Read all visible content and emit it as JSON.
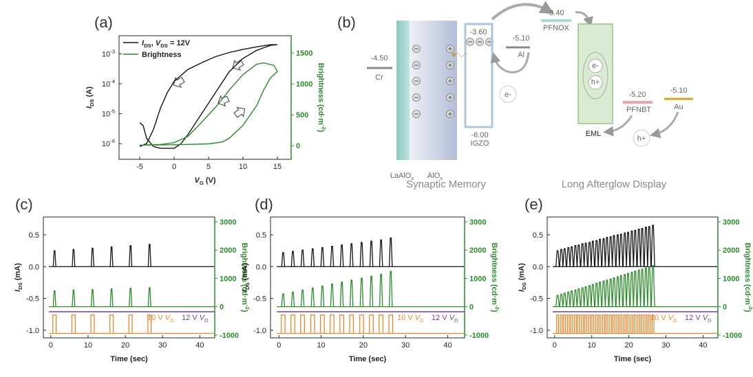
{
  "chart_data": [
    {
      "type": "line",
      "label": "(a)",
      "xlabel": "VG (V)",
      "ylabel": "IDS (A)",
      "y2label": "Brightness (cd·m-2)",
      "xlim": [
        -8,
        17
      ],
      "xticks": [
        -5,
        0,
        5,
        10,
        15
      ],
      "yscale": "log",
      "ylim": [
        3e-07,
        0.004
      ],
      "yticks": [
        {
          "value": 1e-06,
          "label": "10-6"
        },
        {
          "value": 1e-05,
          "label": "10-5"
        },
        {
          "value": 0.0001,
          "label": "10-4"
        },
        {
          "value": 0.001,
          "label": "10-3"
        }
      ],
      "y2lim": [
        -220,
        1780
      ],
      "y2ticks": [
        0,
        500,
        1000,
        1500
      ],
      "y2color": "#2a8a2a",
      "legend": "upper left",
      "series": [
        {
          "name": "IDS, VDS = 12V",
          "color": "#111111",
          "x": [
            -5,
            -4.5,
            -4,
            -3,
            -2,
            0,
            1,
            2,
            4,
            6,
            8,
            10,
            12,
            14,
            15,
            14,
            12,
            10,
            8,
            6,
            4,
            2,
            0,
            -1,
            -2,
            -3,
            -4,
            -5
          ],
          "values": [
            5e-06,
            4e-06,
            1.5e-06,
            8e-07,
            7e-07,
            7e-07,
            1e-06,
            2e-06,
            1e-05,
            5e-05,
            0.00025,
            0.0007,
            0.0013,
            0.0019,
            0.002,
            0.002,
            0.0017,
            0.0014,
            0.0011,
            0.0008,
            0.0005,
            0.0003,
            0.00012,
            5e-05,
            1.5e-05,
            3e-06,
            1e-06,
            8e-07
          ]
        },
        {
          "name": "Brightness",
          "color": "#2a8a2a",
          "axis": "y2",
          "x": [
            -5,
            0,
            5,
            7,
            8,
            10,
            12,
            13,
            14,
            15,
            14.5,
            13,
            12,
            10,
            8,
            6,
            4,
            2,
            0,
            -2,
            -5
          ],
          "values": [
            10,
            15,
            30,
            60,
            120,
            330,
            650,
            900,
            1100,
            1200,
            1300,
            1340,
            1320,
            1150,
            900,
            620,
            380,
            150,
            50,
            20,
            10
          ]
        }
      ]
    },
    {
      "type": "pulse",
      "label": "(c)",
      "xlabel": "Time (sec)",
      "ylabel": "IDS (mA)",
      "y2label": "Brightness (cd·m-2)",
      "xlim": [
        -2,
        44
      ],
      "xticks": [
        0,
        10,
        20,
        30,
        40
      ],
      "ylim": [
        -1.12,
        0.78
      ],
      "yticks": [
        {
          "value": -1,
          "label": "-1.0"
        },
        -0.5,
        {
          "value": 0,
          "label": "0.0"
        },
        0.5
      ],
      "y2lim": [
        -1100,
        3170
      ],
      "y2ticks": [
        -1000,
        0,
        1000,
        2000,
        3000
      ],
      "y2color": "#2a8a2a",
      "series": [
        {
          "shape": "spike",
          "color": "#111111",
          "baseline": 0,
          "width": 0.7,
          "x": [
            1,
            6.1,
            11.2,
            16.3,
            21.4,
            26.5
          ],
          "values": [
            0.25,
            0.27,
            0.29,
            0.31,
            0.33,
            0.35
          ]
        },
        {
          "shape": "spike",
          "color": "#2a8a2a",
          "axis": "y2",
          "baseline": 0,
          "width": 0.7,
          "x": [
            1,
            6.1,
            11.2,
            16.3,
            21.4,
            26.5
          ],
          "values": [
            560,
            590,
            610,
            630,
            650,
            670
          ]
        },
        {
          "name": "12 V VD",
          "shape": "line",
          "color": "#7a3a9a",
          "x": [
            -0.5,
            44
          ],
          "values": [
            -0.71,
            -0.71
          ]
        },
        {
          "name": "10 V VG",
          "shape": "square",
          "color": "#e8882a",
          "baseline": -1.05,
          "width": 0.9,
          "x": [
            1,
            6.1,
            11.2,
            16.3,
            21.4,
            26.5
          ],
          "values": [
            -0.76,
            -0.76,
            -0.76,
            -0.76,
            -0.76,
            -0.76
          ]
        }
      ]
    },
    {
      "type": "pulse",
      "label": "(d)",
      "xlabel": "Time (sec)",
      "ylabel": "IDS (mA)",
      "y2label": "Brightness (cd·m-2)",
      "xlim": [
        -2,
        44
      ],
      "xticks": [
        0,
        10,
        20,
        30,
        40
      ],
      "ylim": [
        -1.12,
        0.78
      ],
      "yticks": [
        {
          "value": -1,
          "label": "-1.0"
        },
        -0.5,
        {
          "value": 0,
          "label": "0.0"
        },
        0.5
      ],
      "y2lim": [
        -1100,
        3170
      ],
      "y2ticks": [
        -1000,
        0,
        1000,
        2000,
        3000
      ],
      "y2color": "#2a8a2a",
      "series": [
        {
          "shape": "spike",
          "color": "#111111",
          "baseline": 0,
          "width": 0.7,
          "x": [
            1,
            3.3,
            5.6,
            8,
            10.3,
            12.6,
            14.9,
            17.2,
            19.6,
            21.9,
            24.2,
            26.5
          ],
          "values": [
            0.22,
            0.24,
            0.26,
            0.28,
            0.3,
            0.32,
            0.34,
            0.36,
            0.38,
            0.4,
            0.42,
            0.45
          ]
        },
        {
          "shape": "spike",
          "color": "#2a8a2a",
          "axis": "y2",
          "baseline": 0,
          "width": 0.7,
          "x": [
            1,
            3.3,
            5.6,
            8,
            10.3,
            12.6,
            14.9,
            17.2,
            19.6,
            21.9,
            24.2,
            26.5
          ],
          "values": [
            450,
            520,
            590,
            660,
            730,
            800,
            870,
            940,
            1010,
            1080,
            1150,
            1250
          ]
        },
        {
          "name": "12 V VD",
          "shape": "line",
          "color": "#7a3a9a",
          "x": [
            -0.5,
            44
          ],
          "values": [
            -0.71,
            -0.71
          ]
        },
        {
          "name": "10 V VG",
          "shape": "square",
          "color": "#e8882a",
          "baseline": -1.05,
          "width": 0.9,
          "x": [
            1,
            3.3,
            5.6,
            8,
            10.3,
            12.6,
            14.9,
            17.2,
            19.6,
            21.9,
            24.2,
            26.5
          ],
          "values": [
            -0.76,
            -0.76,
            -0.76,
            -0.76,
            -0.76,
            -0.76,
            -0.76,
            -0.76,
            -0.76,
            -0.76,
            -0.76,
            -0.76
          ]
        }
      ]
    },
    {
      "type": "pulse",
      "label": "(e)",
      "xlabel": "Time (sec)",
      "ylabel": "IDS (mA)",
      "y2label": "Brightness (cd·m-2)",
      "xlim": [
        -2,
        44
      ],
      "xticks": [
        0,
        10,
        20,
        30,
        40
      ],
      "ylim": [
        -1.12,
        0.78
      ],
      "yticks": [
        {
          "value": -1,
          "label": "-1.0"
        },
        -0.5,
        {
          "value": 0,
          "label": "0.0"
        },
        0.5
      ],
      "y2lim": [
        -1100,
        3170
      ],
      "y2ticks": [
        -1000,
        0,
        1000,
        2000,
        3000
      ],
      "y2color": "#2a8a2a",
      "series": [
        {
          "shape": "spike",
          "color": "#111111",
          "baseline": 0,
          "width": 0.9,
          "x": [
            0.8,
            1.8,
            2.7,
            3.7,
            4.6,
            5.6,
            6.5,
            7.5,
            8.4,
            9.4,
            10.3,
            11.3,
            12.2,
            13.2,
            14.1,
            15.1,
            16,
            17,
            17.9,
            18.9,
            19.8,
            20.8,
            21.7,
            22.7,
            23.6,
            24.6,
            25.5,
            26.5
          ],
          "values": [
            0.25,
            0.27,
            0.28,
            0.3,
            0.31,
            0.33,
            0.34,
            0.36,
            0.37,
            0.38,
            0.4,
            0.41,
            0.43,
            0.44,
            0.46,
            0.47,
            0.49,
            0.5,
            0.51,
            0.53,
            0.54,
            0.56,
            0.57,
            0.59,
            0.6,
            0.62,
            0.63,
            0.65
          ]
        },
        {
          "shape": "spike",
          "color": "#2a8a2a",
          "axis": "y2",
          "baseline": 0,
          "width": 0.9,
          "x": [
            0.8,
            1.8,
            2.7,
            3.7,
            4.6,
            5.6,
            6.5,
            7.5,
            8.4,
            9.4,
            10.3,
            11.3,
            12.2,
            13.2,
            14.1,
            15.1,
            16,
            17,
            17.9,
            18.9,
            19.8,
            20.8,
            21.7,
            22.7,
            23.6,
            24.6,
            25.5,
            26.5
          ],
          "values": [
            400,
            440,
            480,
            520,
            560,
            590,
            630,
            670,
            710,
            750,
            790,
            830,
            870,
            910,
            940,
            980,
            1020,
            1060,
            1100,
            1140,
            1180,
            1220,
            1260,
            1300,
            1330,
            1370,
            1410,
            1450
          ]
        },
        {
          "name": "12 V VD",
          "shape": "line",
          "color": "#7a3a9a",
          "x": [
            -0.5,
            44
          ],
          "values": [
            -0.71,
            -0.71
          ]
        },
        {
          "name": "10 V VG",
          "shape": "square",
          "color": "#e8882a",
          "baseline": -1.05,
          "width": 0.5,
          "x": [
            0.8,
            1.8,
            2.7,
            3.7,
            4.6,
            5.6,
            6.5,
            7.5,
            8.4,
            9.4,
            10.3,
            11.3,
            12.2,
            13.2,
            14.1,
            15.1,
            16,
            17,
            17.9,
            18.9,
            19.8,
            20.8,
            21.7,
            22.7,
            23.6,
            24.6,
            25.5,
            26.5
          ],
          "values": [
            -0.76,
            -0.76,
            -0.76,
            -0.76,
            -0.76,
            -0.76,
            -0.76,
            -0.76,
            -0.76,
            -0.76,
            -0.76,
            -0.76,
            -0.76,
            -0.76,
            -0.76,
            -0.76,
            -0.76,
            -0.76,
            -0.76,
            -0.76,
            -0.76,
            -0.76,
            -0.76,
            -0.76,
            -0.76,
            -0.76,
            -0.76,
            -0.76
          ]
        }
      ]
    }
  ],
  "diagram": {
    "label": "(b)",
    "cr": {
      "energy": "-4.50",
      "name": "Cr"
    },
    "laalox": "LaAlOx",
    "alox": "AlOx",
    "igzo": {
      "top": "-3.60",
      "bottom": "-6.00",
      "name": "IGZO"
    },
    "al": {
      "energy": "-5.10",
      "name": "Al"
    },
    "pfnox": {
      "energy": "-3.40",
      "name": "PFNOX"
    },
    "pfnbt": {
      "energy": "-5.20",
      "name": "PFNBT"
    },
    "au": {
      "energy": "-5.10",
      "name": "Au"
    },
    "eml": "EML",
    "carriers": {
      "electron": "e-",
      "hole": "h+"
    },
    "captions": [
      "Synaptic Memory",
      "Long Afterglow Display"
    ]
  }
}
